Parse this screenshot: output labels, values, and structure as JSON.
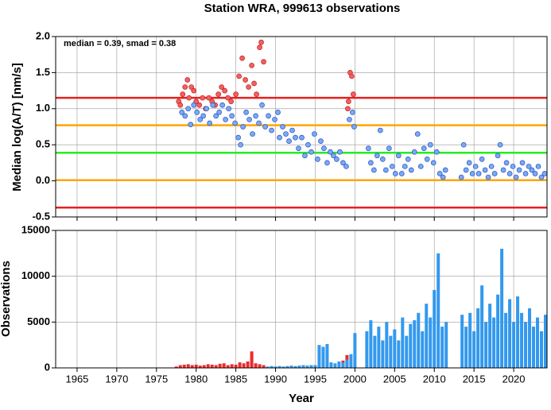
{
  "chart_data": [
    {
      "type": "scatter",
      "title": "Station WRA, 999613 observations",
      "annotation": "median = 0.39, smad = 0.38",
      "y_label": "Median log(A/T) [nm/s]",
      "xlim": [
        1962.3,
        2024.2
      ],
      "xticks": [
        1965,
        1970,
        1975,
        1980,
        1985,
        1990,
        1995,
        2000,
        2005,
        2010,
        2015,
        2020
      ],
      "ylim": [
        -0.5,
        2.0
      ],
      "yticks": [
        -0.5,
        {
          "value": 0,
          "label": "0.0"
        },
        0.5,
        {
          "value": 1,
          "label": "1.0"
        },
        1.5,
        {
          "value": 2,
          "label": "2.0"
        }
      ],
      "grid": true,
      "reference_lines": {
        "values": [
          1.15,
          0.77,
          0.39,
          0.01,
          -0.37
        ],
        "colors": [
          "#e82020",
          "#ffa500",
          "#22ee22",
          "#ffa500",
          "#e82020"
        ]
      },
      "series": [
        {
          "color": "#f26060",
          "stroke": "#c02020",
          "x": [
            1977.8,
            1978,
            1978.3,
            1978.6,
            1978.9,
            1979.1,
            1979.4,
            1979.7,
            1980,
            1980.4,
            1980.8,
            1981.2,
            1981.6,
            1982,
            1982.4,
            1982.8,
            1983.2,
            1983.6,
            1984,
            1984.4,
            1985,
            1985.4,
            1985.8,
            1986.2,
            1986.6,
            1987,
            1987.3,
            1987.6,
            1988,
            1988.2,
            1988.5,
            1999.1,
            1999.2,
            1999.4,
            1999.6,
            1999.8
          ],
          "values": [
            1.1,
            1.05,
            1.2,
            1.3,
            1.4,
            1.15,
            1.3,
            1.25,
            1.1,
            1.05,
            1.15,
            1.0,
            1.15,
            1.1,
            1.05,
            1.2,
            1.3,
            1.25,
            1.15,
            1.1,
            1.2,
            1.45,
            1.7,
            1.4,
            1.3,
            1.6,
            1.35,
            1.2,
            1.85,
            1.92,
            1.65,
            1.0,
            1.1,
            1.5,
            1.45,
            1.2
          ]
        },
        {
          "color": "#78aaf5",
          "stroke": "#2a4fc0",
          "x": [
            1978.2,
            1978.6,
            1979,
            1979.3,
            1979.7,
            1980.1,
            1980.5,
            1980.9,
            1981.3,
            1981.7,
            1982.1,
            1982.5,
            1982.9,
            1983.3,
            1983.7,
            1984.1,
            1984.5,
            1984.9,
            1985.3,
            1985.6,
            1985.9,
            1986.3,
            1986.7,
            1987.1,
            1987.5,
            1987.9,
            1988.3,
            1988.7,
            1989.1,
            1989.5,
            1989.9,
            1990.3,
            1990.5,
            1990.9,
            1991.3,
            1991.7,
            1992.1,
            1992.5,
            1992.9,
            1993.3,
            1993.7,
            1994.1,
            1994.5,
            1994.9,
            1995.3,
            1995.7,
            1996.1,
            1996.5,
            1996.9,
            1997.3,
            1997.7,
            1998.1,
            1998.5,
            1998.9,
            1999.3,
            1999.7,
            1999.9,
            2001.7,
            2002,
            2002.4,
            2002.8,
            2003.2,
            2003.5,
            2003.9,
            2004.3,
            2004.7,
            2005.1,
            2005.5,
            2005.9,
            2006.3,
            2006.7,
            2007.1,
            2007.5,
            2007.9,
            2008.3,
            2008.7,
            2009.1,
            2009.5,
            2009.9,
            2010.3,
            2010.7,
            2011.1,
            2011.4,
            2013.4,
            2013.7,
            2014,
            2014.4,
            2014.8,
            2015.2,
            2015.6,
            2016,
            2016.4,
            2016.8,
            2017.2,
            2017.6,
            2018,
            2018.3,
            2018.7,
            2019.1,
            2019.5,
            2019.9,
            2020.3,
            2020.7,
            2021.1,
            2021.5,
            2021.9,
            2022.3,
            2022.7,
            2023.1,
            2023.5,
            2023.9
          ],
          "values": [
            0.95,
            0.9,
            1.0,
            0.78,
            1.05,
            0.95,
            0.85,
            0.9,
            1.0,
            0.8,
            1.05,
            0.9,
            0.95,
            1.05,
            0.85,
            1.0,
            0.9,
            0.8,
            0.6,
            0.5,
            0.75,
            0.95,
            0.85,
            0.65,
            0.9,
            0.8,
            1.05,
            0.75,
            0.9,
            0.7,
            0.85,
            0.95,
            0.6,
            0.75,
            0.65,
            0.55,
            0.7,
            0.6,
            0.45,
            0.6,
            0.35,
            0.5,
            0.4,
            0.65,
            0.3,
            0.55,
            0.45,
            0.25,
            0.4,
            0.35,
            0.3,
            0.4,
            0.25,
            0.2,
            0.85,
            0.95,
            0.75,
            0.45,
            0.25,
            0.15,
            0.35,
            0.7,
            0.3,
            0.15,
            0.45,
            0.2,
            0.1,
            0.35,
            0.1,
            0.2,
            0.3,
            0.15,
            0.4,
            0.65,
            0.2,
            0.45,
            0.3,
            0.5,
            0.25,
            0.4,
            0.1,
            0.05,
            0.15,
            0.05,
            0.5,
            0.15,
            0.25,
            0.1,
            0.2,
            0.1,
            0.3,
            0.15,
            0.05,
            0.2,
            0.1,
            0.35,
            0.5,
            0.15,
            0.25,
            0.1,
            0.2,
            0.05,
            0.15,
            0.25,
            0.1,
            0.2,
            0.15,
            0.1,
            0.2,
            0.05,
            0.1
          ]
        }
      ]
    },
    {
      "type": "bar",
      "y_label": "Observations",
      "x_label": "Year",
      "xlim": [
        1962.3,
        2024.2
      ],
      "xticks": [
        1965,
        1970,
        1975,
        1980,
        1985,
        1990,
        1995,
        2000,
        2005,
        2010,
        2015,
        2020
      ],
      "ylim": [
        0,
        15000
      ],
      "yticks": [
        0,
        5000,
        10000,
        15000
      ],
      "grid": true,
      "series": [
        {
          "color": "#ee2a2a",
          "x": [
            1977.5,
            1978,
            1978.5,
            1979,
            1979.5,
            1980,
            1980.5,
            1981,
            1981.5,
            1982,
            1982.5,
            1983,
            1983.5,
            1984,
            1984.5,
            1985,
            1985.5,
            1986,
            1986.5,
            1987,
            1987.5,
            1988,
            1988.5,
            1998.5,
            1999
          ],
          "values": [
            150,
            300,
            350,
            400,
            300,
            350,
            250,
            300,
            400,
            350,
            300,
            450,
            500,
            300,
            400,
            350,
            600,
            500,
            700,
            1800,
            500,
            400,
            300,
            800,
            1400
          ]
        },
        {
          "color": "#3399ee",
          "x": [
            1989,
            1989.5,
            1990,
            1990.5,
            1991,
            1991.5,
            1992,
            1992.5,
            1993,
            1993.5,
            1994,
            1994.5,
            1995,
            1995.5,
            1996,
            1996.5,
            1997,
            1997.5,
            1998,
            1998.5,
            1999,
            1999.5,
            2000,
            2000.5,
            2001,
            2001.5,
            2002,
            2002.5,
            2003,
            2003.5,
            2004,
            2004.5,
            2005,
            2005.5,
            2006,
            2006.5,
            2007,
            2007.5,
            2008,
            2008.5,
            2009,
            2009.5,
            2010,
            2010.5,
            2011,
            2011.5,
            2012,
            2012.5,
            2013,
            2013.5,
            2014,
            2014.5,
            2015,
            2015.5,
            2016,
            2016.5,
            2017,
            2017.5,
            2018,
            2018.5,
            2019,
            2019.5,
            2020,
            2020.5,
            2021,
            2021.5,
            2022,
            2022.5,
            2023,
            2023.5,
            2024
          ],
          "values": [
            150,
            200,
            150,
            200,
            150,
            200,
            250,
            200,
            250,
            300,
            250,
            300,
            300,
            2500,
            2300,
            2600,
            600,
            500,
            700,
            600,
            900,
            1500,
            3800,
            null,
            null,
            4000,
            5200,
            3500,
            4500,
            3000,
            5000,
            3500,
            4200,
            3000,
            5500,
            3500,
            4800,
            5200,
            6000,
            4000,
            7000,
            5500,
            8500,
            12500,
            4500,
            5000,
            null,
            null,
            null,
            5800,
            4500,
            6000,
            4000,
            6500,
            9000,
            5000,
            7000,
            5500,
            8000,
            13000,
            6000,
            7500,
            5000,
            7800,
            6000,
            5000,
            6500,
            4500,
            5500,
            4000,
            5800
          ]
        }
      ]
    }
  ]
}
